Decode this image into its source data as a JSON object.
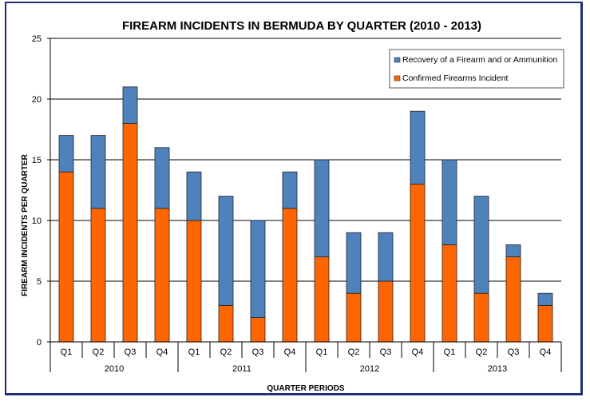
{
  "chart_data": {
    "type": "bar",
    "stacked": true,
    "title": "FIREARM  INCIDENTS  IN  BERMUDA  BY  QUARTER  (2010 -  2013)",
    "xlabel": "QUARTER  PERIODS",
    "ylabel": "FIREARM  INCIDENTS  PER  QUARTER",
    "ylim": [
      0,
      25
    ],
    "yticks": [
      0,
      5,
      10,
      15,
      20,
      25
    ],
    "grid": true,
    "legend_position": "top-right",
    "categories": [
      "Q1",
      "Q2",
      "Q3",
      "Q4",
      "Q1",
      "Q2",
      "Q3",
      "Q4",
      "Q1",
      "Q2",
      "Q3",
      "Q4",
      "Q1",
      "Q2",
      "Q3",
      "Q4"
    ],
    "groups": [
      "2010",
      "2011",
      "2012",
      "2013"
    ],
    "series": [
      {
        "name": "Confirmed Firearms Incident",
        "color": "#ff6600",
        "values": [
          14,
          11,
          18,
          11,
          10,
          3,
          2,
          11,
          7,
          4,
          5,
          13,
          8,
          4,
          7,
          3
        ]
      },
      {
        "name": "Recovery of a Firearm and or Ammunition",
        "color": "#4f81bd",
        "values": [
          3,
          6,
          3,
          5,
          4,
          9,
          8,
          3,
          8,
          5,
          4,
          6,
          7,
          8,
          1,
          1
        ]
      }
    ]
  }
}
